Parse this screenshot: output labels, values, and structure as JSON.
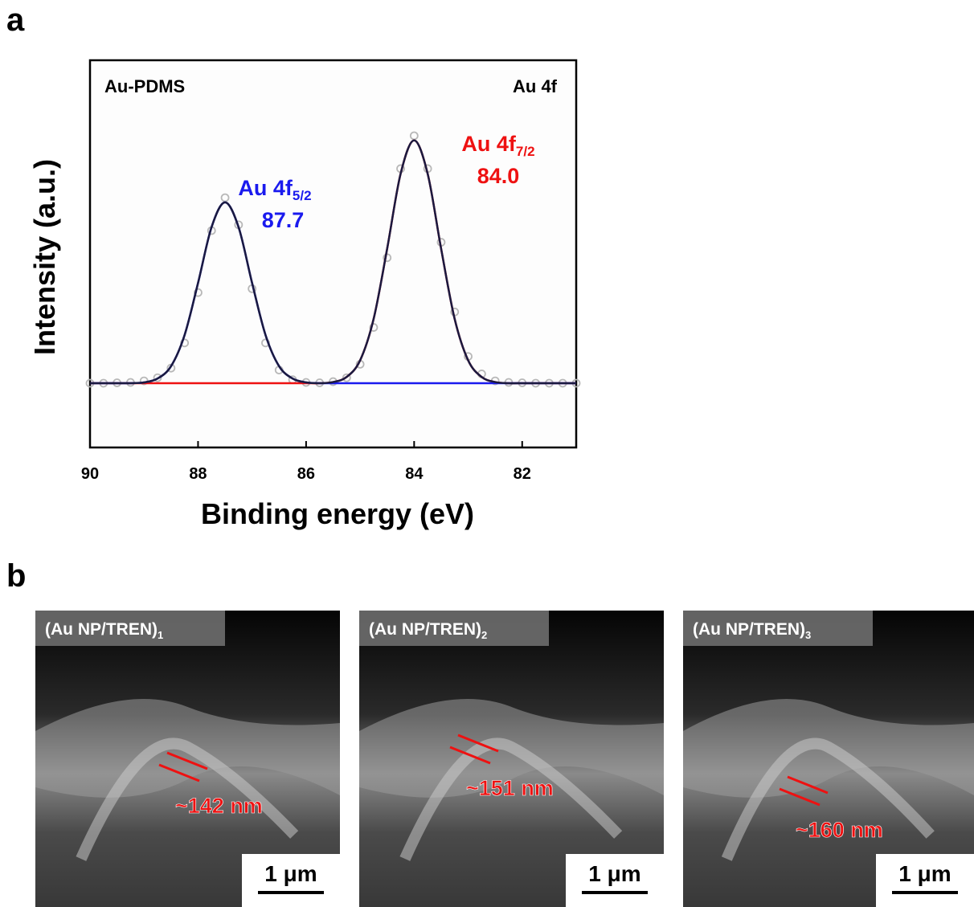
{
  "panel_labels": [
    "a",
    "b"
  ],
  "chart_data": {
    "type": "line",
    "xlabel": "Binding energy (eV)",
    "ylabel": "Intensity (a.u.)",
    "xlim": [
      90,
      81
    ],
    "xticks": [
      90,
      88,
      86,
      84,
      82
    ],
    "ylim": [
      0,
      1
    ],
    "annotations": [
      {
        "text": "Au-PDMS"
      },
      {
        "text": "Au 4f"
      }
    ],
    "peak_labels": [
      {
        "text": "Au 4f",
        "sub": "5/2",
        "energy": "87.7",
        "color": "#1a1aee"
      },
      {
        "text": "Au 4f",
        "sub": "7/2",
        "energy": "84.0",
        "color": "#ee1111"
      }
    ],
    "x": [
      90,
      89.75,
      89.5,
      89.25,
      89,
      88.75,
      88.5,
      88.25,
      88,
      87.75,
      87.5,
      87.25,
      87,
      86.75,
      86.5,
      86.25,
      86,
      85.75,
      85.5,
      85.25,
      85,
      84.75,
      84.5,
      84.25,
      84,
      83.75,
      83.5,
      83.25,
      83,
      82.75,
      82.5,
      82.25,
      82,
      81.75,
      81.5,
      81.25,
      81
    ],
    "series": [
      {
        "style": "markers",
        "color": "#b8b8b8",
        "values": [
          0.166,
          0.166,
          0.167,
          0.168,
          0.172,
          0.18,
          0.205,
          0.27,
          0.4,
          0.56,
          0.645,
          0.575,
          0.41,
          0.27,
          0.2,
          0.175,
          0.168,
          0.167,
          0.17,
          0.18,
          0.215,
          0.31,
          0.49,
          0.72,
          0.805,
          0.72,
          0.53,
          0.35,
          0.235,
          0.19,
          0.172,
          0.168,
          0.167,
          0.166,
          0.166,
          0.166,
          0.166
        ]
      },
      {
        "style": "line",
        "color": "#ee1111",
        "values": [
          0.166,
          0.166,
          0.166,
          0.166,
          0.166,
          0.166,
          0.166,
          0.166,
          0.166,
          0.166,
          0.166,
          0.166,
          0.166,
          0.166,
          0.166,
          0.166,
          0.166,
          0.166,
          0.169,
          0.182,
          0.225,
          0.332,
          0.513,
          0.707,
          0.793,
          0.707,
          0.513,
          0.332,
          0.225,
          0.182,
          0.169,
          0.166,
          0.166,
          0.166,
          0.166,
          0.166,
          0.166
        ]
      },
      {
        "style": "line",
        "color": "#1a1aee",
        "values": [
          0.166,
          0.166,
          0.166,
          0.166,
          0.168,
          0.178,
          0.21,
          0.29,
          0.425,
          0.569,
          0.633,
          0.569,
          0.425,
          0.29,
          0.21,
          0.178,
          0.168,
          0.166,
          0.166,
          0.166,
          0.166,
          0.166,
          0.166,
          0.166,
          0.166,
          0.166,
          0.166,
          0.166,
          0.166,
          0.166,
          0.166,
          0.166,
          0.166,
          0.166,
          0.166,
          0.166,
          0.166
        ]
      },
      {
        "style": "line",
        "color": "#1a1a40",
        "values": [
          0.166,
          0.166,
          0.166,
          0.166,
          0.168,
          0.178,
          0.21,
          0.29,
          0.425,
          0.569,
          0.633,
          0.569,
          0.425,
          0.29,
          0.21,
          0.178,
          0.168,
          0.166,
          0.169,
          0.182,
          0.225,
          0.332,
          0.513,
          0.707,
          0.793,
          0.707,
          0.513,
          0.332,
          0.225,
          0.182,
          0.169,
          0.166,
          0.166,
          0.166,
          0.166,
          0.166,
          0.166
        ]
      }
    ]
  },
  "sem_panels": [
    {
      "label": "(Au NP/TREN)",
      "sub": "1",
      "measure": "~142 nm",
      "scale": "1 μm"
    },
    {
      "label": "(Au NP/TREN)",
      "sub": "2",
      "measure": "~151 nm",
      "scale": "1 μm"
    },
    {
      "label": "(Au NP/TREN)",
      "sub": "3",
      "measure": "~160 nm",
      "scale": "1 μm"
    }
  ]
}
